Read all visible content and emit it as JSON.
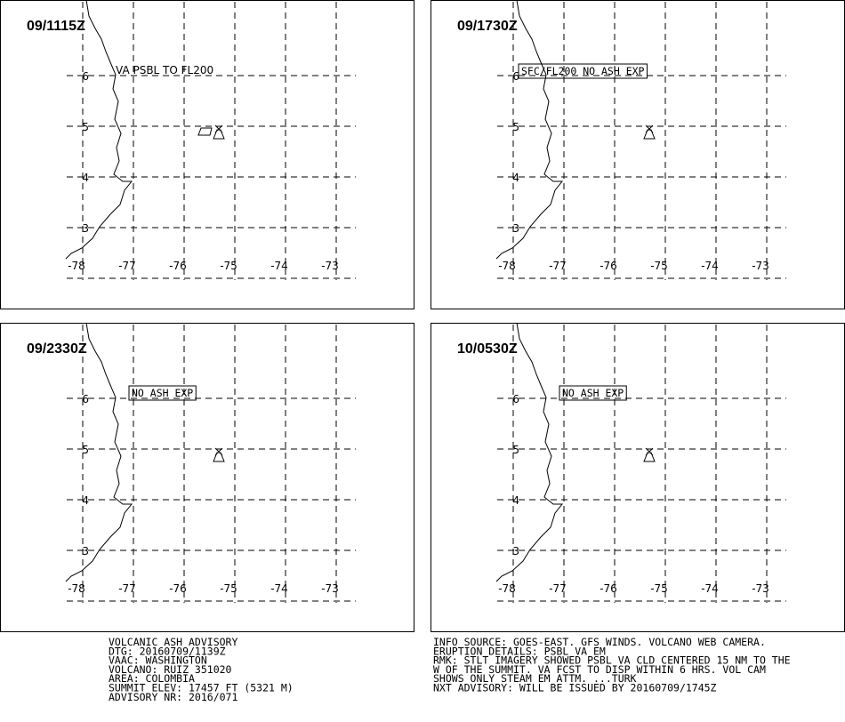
{
  "panels": [
    {
      "time": "09/1115Z",
      "annotation": {
        "text": "VA PSBL TO FL200",
        "boxed": false
      },
      "ash_area": true
    },
    {
      "time": "09/1730Z",
      "annotation": {
        "text": "SFC/FL200 NO ASH EXP",
        "boxed": true
      },
      "ash_area": false
    },
    {
      "time": "09/2330Z",
      "annotation": {
        "text": "NO ASH EXP",
        "boxed": true
      },
      "ash_area": false
    },
    {
      "time": "10/0530Z",
      "annotation": {
        "text": "NO ASH EXP",
        "boxed": true
      },
      "ash_area": false
    }
  ],
  "lon_labels": [
    "-78",
    "-77",
    "-76",
    "-75",
    "-74",
    "-73"
  ],
  "lat_labels": [
    "6",
    "5",
    "4",
    "3"
  ],
  "footer": {
    "left": [
      "VOLCANIC ASH ADVISORY",
      "DTG: 20160709/1139Z",
      "VAAC: WASHINGTON",
      "VOLCANO: RUIZ 351020",
      "AREA: COLOMBIA",
      "SUMMIT ELEV: 17457 FT (5321 M)",
      "ADVISORY NR: 2016/071"
    ],
    "right": [
      "INFO SOURCE: GOES-EAST. GFS WINDS. VOLCANO WEB CAMERA.",
      "ERUPTION DETAILS: PSBL VA EM",
      "RMK: STLT IMAGERY SHOWED PSBL VA CLD CENTERED 15 NM TO THE",
      "W OF THE SUMMIT. VA FCST TO DISP WITHIN 6 HRS. VOL CAM",
      "SHOWS ONLY STEAM EM ATTM. ...TURK",
      "NXT ADVISORY: WILL BE ISSUED BY 20160709/1745Z"
    ]
  }
}
